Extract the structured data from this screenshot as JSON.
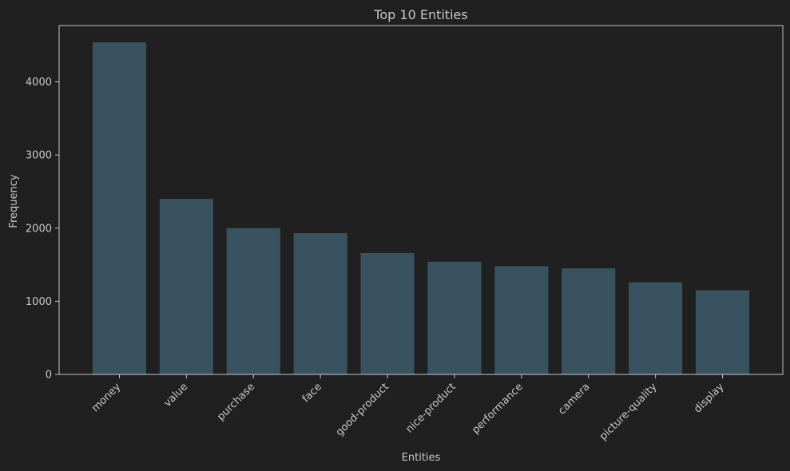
{
  "chart_data": {
    "type": "bar",
    "title": "Top 10 Entities",
    "xlabel": "Entities",
    "ylabel": "Frequency",
    "categories": [
      "money",
      "value",
      "purchase",
      "face",
      "good-product",
      "nice-product",
      "performance",
      "camera",
      "picture-quality",
      "display"
    ],
    "values": [
      4540,
      2400,
      2000,
      1930,
      1660,
      1540,
      1480,
      1450,
      1260,
      1150
    ],
    "ylim": [
      0,
      4770
    ],
    "yticks": [
      0,
      1000,
      2000,
      3000,
      4000
    ],
    "grid": false,
    "legend": "none"
  },
  "colors": {
    "background": "#202020",
    "bar": "#38535f",
    "axis": "#c4c4c4",
    "text": "#c8c8c8",
    "title": "#c8c8c8"
  }
}
